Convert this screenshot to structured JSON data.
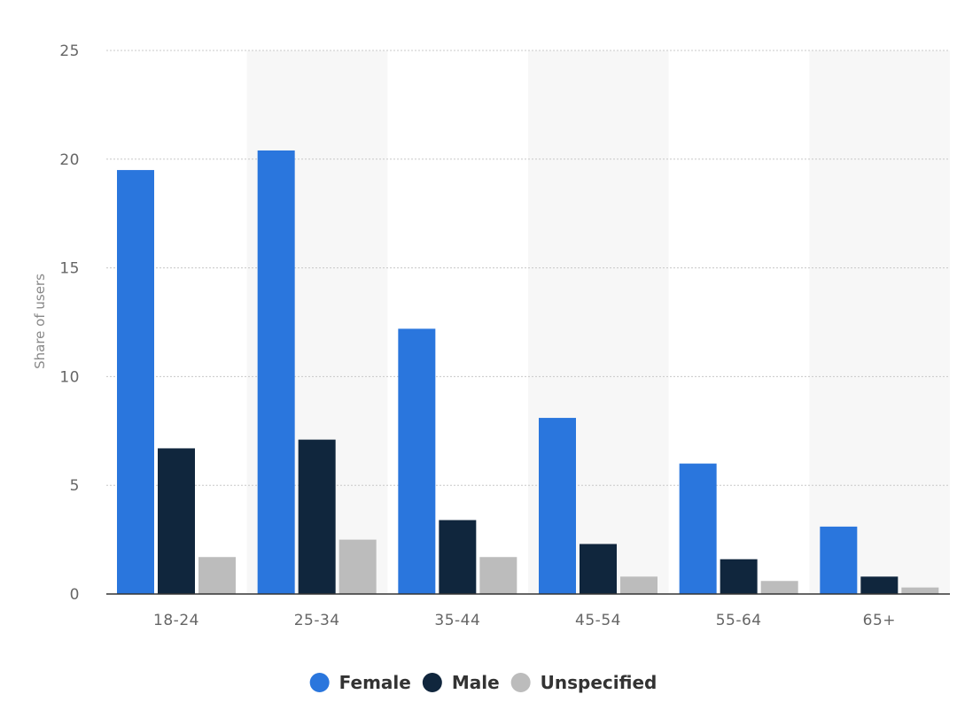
{
  "chart_data": {
    "type": "bar",
    "title": "",
    "xlabel": "",
    "ylabel": "Share of users",
    "ylim": [
      0,
      25
    ],
    "yticks": [
      0,
      5,
      10,
      15,
      20,
      25
    ],
    "grid": true,
    "legend_position": "bottom",
    "categories": [
      "18-24",
      "25-34",
      "35-44",
      "45-54",
      "55-64",
      "65+"
    ],
    "series": [
      {
        "name": "Female",
        "color": "#2a76dd",
        "values": [
          19.5,
          20.4,
          12.2,
          8.1,
          6.0,
          3.1
        ]
      },
      {
        "name": "Male",
        "color": "#10263d",
        "values": [
          6.7,
          7.1,
          3.4,
          2.3,
          1.6,
          0.8
        ]
      },
      {
        "name": "Unspecified",
        "color": "#bcbcbc",
        "values": [
          1.7,
          2.5,
          1.7,
          0.8,
          0.6,
          0.3
        ]
      }
    ]
  }
}
